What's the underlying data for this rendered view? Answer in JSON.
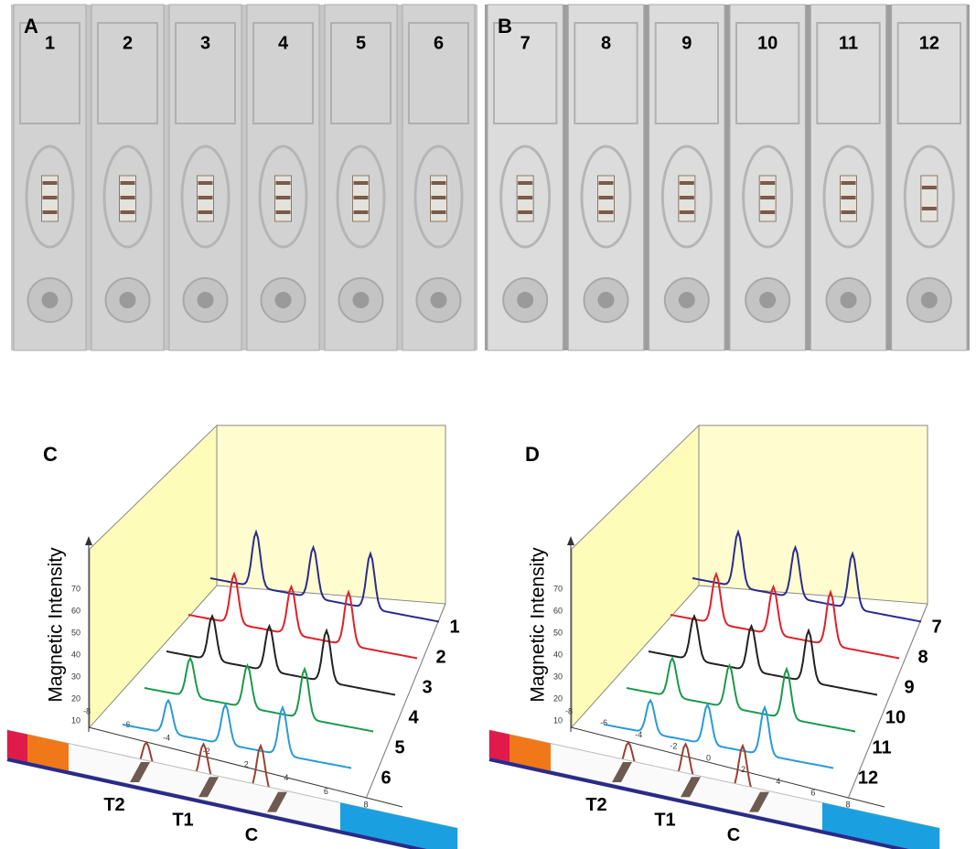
{
  "panels": [
    {
      "label": "A",
      "strips": [
        "1",
        "2",
        "3",
        "4",
        "5",
        "6"
      ]
    },
    {
      "label": "B",
      "strips": [
        "7",
        "8",
        "9",
        "10",
        "11",
        "12"
      ]
    },
    {
      "label": "C",
      "y_axis_label": "Magnetic Intensity",
      "y_ticks": [
        "10",
        "20",
        "30",
        "40",
        "50",
        "60",
        "70"
      ],
      "x_ticks": [
        "-8",
        "-6",
        "-4",
        "-2",
        "2",
        "4",
        "6",
        "8"
      ],
      "curves": [
        "1",
        "2",
        "3",
        "4",
        "5",
        "6"
      ],
      "lines": [
        "T2",
        "T1",
        "C"
      ]
    },
    {
      "label": "D",
      "y_axis_label": "Magnetic Intensity",
      "y_ticks": [
        "10",
        "20",
        "30",
        "40",
        "50",
        "60",
        "70"
      ],
      "x_ticks": [
        "-8",
        "-6",
        "-4",
        "-2",
        "0",
        "2",
        "4",
        "6",
        "8"
      ],
      "curves": [
        "7",
        "8",
        "9",
        "10",
        "11",
        "12"
      ],
      "lines": [
        "T2",
        "T1",
        "C"
      ]
    }
  ]
}
